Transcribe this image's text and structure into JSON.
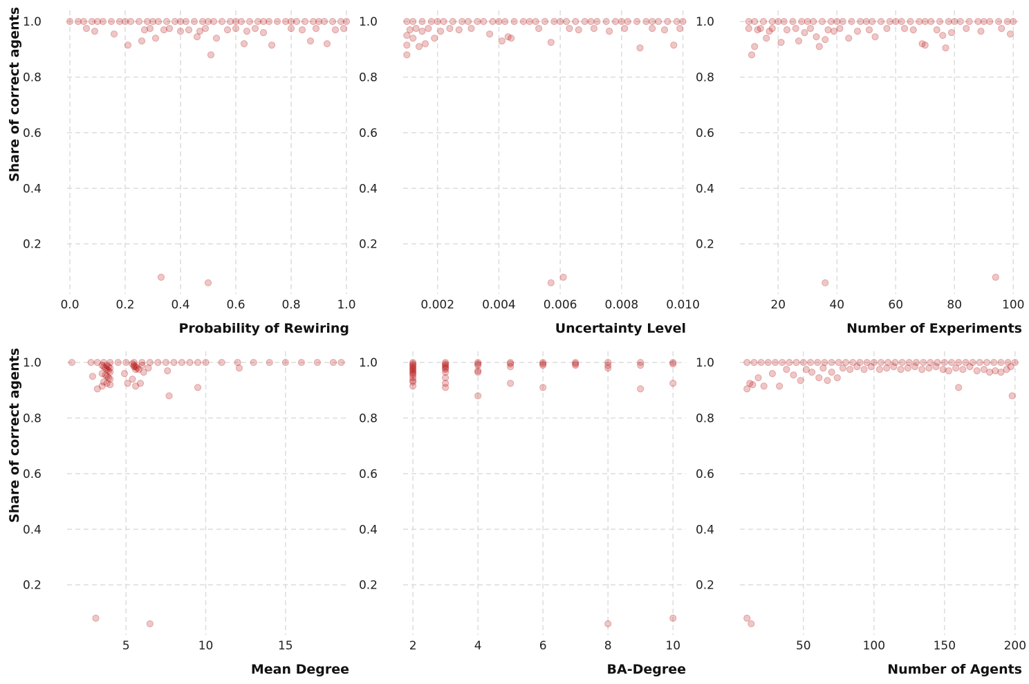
{
  "style": {
    "point_color": "#b30000",
    "grid_color": "#dcdcdc"
  },
  "chart_data": [
    {
      "type": "scatter",
      "xlabel": "Probability of Rewiring",
      "ylabel": "Share of correct agents",
      "xlim": [
        -0.01,
        1.01
      ],
      "ylim": [
        0.02,
        1.04
      ],
      "xticks": [
        0.0,
        0.2,
        0.4,
        0.6,
        0.8,
        1.0
      ],
      "xtick_labels": [
        "0.0",
        "0.2",
        "0.4",
        "0.6",
        "0.8",
        "1.0"
      ],
      "yticks": [
        0.2,
        0.4,
        0.6,
        0.8,
        1.0
      ],
      "ytick_labels": [
        "0.2",
        "0.4",
        "0.6",
        "0.8",
        "1.0"
      ],
      "grid": true,
      "points": {
        "x": [
          0.0,
          0.05,
          0.1,
          0.15,
          0.2,
          0.25,
          0.3,
          0.35,
          0.4,
          0.45,
          0.5,
          0.55,
          0.6,
          0.65,
          0.7,
          0.75,
          0.8,
          0.85,
          0.9,
          0.95,
          1.0,
          0.03,
          0.08,
          0.12,
          0.18,
          0.22,
          0.28,
          0.32,
          0.38,
          0.42,
          0.48,
          0.52,
          0.58,
          0.62,
          0.68,
          0.72,
          0.78,
          0.82,
          0.88,
          0.92,
          0.98,
          0.06,
          0.09,
          0.16,
          0.21,
          0.26,
          0.27,
          0.29,
          0.31,
          0.34,
          0.36,
          0.4,
          0.43,
          0.46,
          0.47,
          0.49,
          0.51,
          0.53,
          0.57,
          0.6,
          0.63,
          0.64,
          0.67,
          0.7,
          0.73,
          0.8,
          0.84,
          0.87,
          0.89,
          0.93,
          0.96,
          0.99,
          0.33,
          0.5
        ],
        "y": [
          1.0,
          1.0,
          1.0,
          1.0,
          1.0,
          1.0,
          1.0,
          1.0,
          1.0,
          1.0,
          1.0,
          1.0,
          1.0,
          1.0,
          1.0,
          1.0,
          1.0,
          1.0,
          1.0,
          1.0,
          1.0,
          1.0,
          1.0,
          1.0,
          1.0,
          1.0,
          1.0,
          1.0,
          1.0,
          1.0,
          1.0,
          1.0,
          1.0,
          1.0,
          1.0,
          1.0,
          1.0,
          1.0,
          1.0,
          1.0,
          1.0,
          0.975,
          0.965,
          0.955,
          0.915,
          0.93,
          0.97,
          0.975,
          0.94,
          0.97,
          0.975,
          0.965,
          0.97,
          0.945,
          0.965,
          0.975,
          0.88,
          0.94,
          0.97,
          0.975,
          0.92,
          0.965,
          0.975,
          0.96,
          0.915,
          0.975,
          0.97,
          0.93,
          0.975,
          0.92,
          0.97,
          0.975,
          0.08,
          0.06
        ]
      }
    },
    {
      "type": "scatter",
      "xlabel": "Uncertainty Level",
      "ylabel": "",
      "xlim": [
        0.00088,
        0.0101
      ],
      "ylim": [
        0.02,
        1.04
      ],
      "xticks": [
        0.002,
        0.004,
        0.006,
        0.008,
        0.01
      ],
      "xtick_labels": [
        "0.002",
        "0.004",
        "0.006",
        "0.008",
        "0.010"
      ],
      "yticks": [
        0.2,
        0.4,
        0.6,
        0.8,
        1.0
      ],
      "ytick_labels": [
        "0.2",
        "0.4",
        "0.6",
        "0.8",
        "1.0"
      ],
      "grid": true,
      "points": {
        "x": [
          0.001,
          0.0015,
          0.002,
          0.0025,
          0.003,
          0.0035,
          0.004,
          0.0045,
          0.005,
          0.0055,
          0.006,
          0.0065,
          0.007,
          0.0075,
          0.008,
          0.0085,
          0.009,
          0.0095,
          0.01,
          0.0012,
          0.0018,
          0.0022,
          0.0028,
          0.0033,
          0.0038,
          0.0042,
          0.0048,
          0.0052,
          0.0058,
          0.0062,
          0.0068,
          0.0072,
          0.0078,
          0.0082,
          0.0088,
          0.0092,
          0.0098,
          0.001,
          0.001,
          0.001,
          0.0011,
          0.0012,
          0.0013,
          0.0014,
          0.0015,
          0.0016,
          0.0017,
          0.0019,
          0.0021,
          0.0024,
          0.0027,
          0.0031,
          0.0037,
          0.0041,
          0.0043,
          0.0044,
          0.0053,
          0.0057,
          0.0063,
          0.0066,
          0.0071,
          0.0076,
          0.0081,
          0.0086,
          0.009,
          0.0094,
          0.0097,
          0.0099,
          0.0057,
          0.0061
        ],
        "y": [
          1.0,
          1.0,
          1.0,
          1.0,
          1.0,
          1.0,
          1.0,
          1.0,
          1.0,
          1.0,
          1.0,
          1.0,
          1.0,
          1.0,
          1.0,
          1.0,
          1.0,
          1.0,
          1.0,
          1.0,
          1.0,
          1.0,
          1.0,
          1.0,
          1.0,
          1.0,
          1.0,
          1.0,
          1.0,
          1.0,
          1.0,
          1.0,
          1.0,
          1.0,
          1.0,
          1.0,
          1.0,
          0.95,
          0.915,
          0.88,
          0.97,
          0.94,
          0.975,
          0.91,
          0.965,
          0.92,
          0.975,
          0.94,
          0.965,
          0.975,
          0.97,
          0.975,
          0.955,
          0.93,
          0.945,
          0.94,
          0.975,
          0.925,
          0.975,
          0.97,
          0.975,
          0.965,
          0.975,
          0.905,
          0.975,
          0.97,
          0.915,
          0.975,
          0.06,
          0.08
        ]
      }
    },
    {
      "type": "scatter",
      "xlabel": "Number of Experiments",
      "ylabel": "",
      "xlim": [
        7,
        103
      ],
      "ylim": [
        0.02,
        1.04
      ],
      "xticks": [
        20,
        40,
        60,
        80,
        100
      ],
      "xtick_labels": [
        "20",
        "40",
        "60",
        "80",
        "100"
      ],
      "yticks": [
        0.2,
        0.4,
        0.6,
        0.8,
        1.0
      ],
      "ytick_labels": [
        "0.2",
        "0.4",
        "0.6",
        "0.8",
        "1.0"
      ],
      "grid": true,
      "points": {
        "x": [
          10,
          15,
          20,
          25,
          30,
          35,
          40,
          45,
          50,
          55,
          60,
          65,
          70,
          75,
          80,
          85,
          90,
          95,
          100,
          12,
          18,
          22,
          28,
          32,
          38,
          42,
          48,
          52,
          58,
          62,
          68,
          72,
          78,
          82,
          88,
          92,
          98,
          10,
          11,
          12,
          13,
          14,
          16,
          17,
          18,
          21,
          23,
          26,
          27,
          29,
          31,
          33,
          34,
          36,
          37,
          39,
          41,
          44,
          47,
          51,
          53,
          57,
          63,
          66,
          69,
          70,
          74,
          76,
          77,
          79,
          84,
          89,
          96,
          99,
          36,
          94
        ],
        "y": [
          1.0,
          1.0,
          1.0,
          1.0,
          1.0,
          1.0,
          1.0,
          1.0,
          1.0,
          1.0,
          1.0,
          1.0,
          1.0,
          1.0,
          1.0,
          1.0,
          1.0,
          1.0,
          1.0,
          1.0,
          1.0,
          1.0,
          1.0,
          1.0,
          1.0,
          1.0,
          1.0,
          1.0,
          1.0,
          1.0,
          1.0,
          1.0,
          1.0,
          1.0,
          1.0,
          1.0,
          1.0,
          0.975,
          0.88,
          0.91,
          0.97,
          0.975,
          0.94,
          0.965,
          0.975,
          0.925,
          0.97,
          0.975,
          0.93,
          0.96,
          0.975,
          0.945,
          0.91,
          0.935,
          0.97,
          0.965,
          0.975,
          0.94,
          0.965,
          0.97,
          0.945,
          0.975,
          0.975,
          0.97,
          0.92,
          0.915,
          0.97,
          0.95,
          0.905,
          0.96,
          0.975,
          0.965,
          0.975,
          0.955,
          0.06,
          0.08
        ]
      }
    },
    {
      "type": "scatter",
      "xlabel": "Mean Degree",
      "ylabel": "Share of correct agents",
      "xlim": [
        1.3,
        19.0
      ],
      "ylim": [
        0.02,
        1.04
      ],
      "xticks": [
        5,
        10,
        15
      ],
      "xtick_labels": [
        "5",
        "10",
        "15"
      ],
      "yticks": [
        0.2,
        0.4,
        0.6,
        0.8,
        1.0
      ],
      "ytick_labels": [
        "0.2",
        "0.4",
        "0.6",
        "0.8",
        "1.0"
      ],
      "grid": true,
      "points": {
        "x": [
          1.6,
          2.8,
          3.2,
          3.6,
          4.0,
          4.5,
          5.0,
          5.5,
          6.0,
          6.5,
          7.0,
          7.5,
          8.0,
          8.5,
          9.0,
          9.5,
          10,
          11,
          12,
          13,
          14,
          15,
          16,
          17,
          18,
          18.5,
          3.5,
          3.6,
          3.7,
          3.8,
          3.9,
          4.0,
          3.5,
          3.7,
          3.8,
          3.9,
          4.0,
          3.6,
          3.8,
          3.9,
          4.0,
          5.5,
          5.6,
          5.7,
          5.8,
          6.0,
          5.4,
          5.5,
          5.6,
          2.9,
          3.2,
          3.5,
          3.8,
          4.0,
          4.9,
          5.1,
          5.4,
          5.6,
          5.9,
          6.1,
          6.4,
          7.6,
          7.7,
          9.5,
          12.1,
          3.1,
          6.5
        ],
        "y": [
          1.0,
          1.0,
          1.0,
          1.0,
          1.0,
          1.0,
          1.0,
          1.0,
          1.0,
          1.0,
          1.0,
          1.0,
          1.0,
          1.0,
          1.0,
          1.0,
          1.0,
          1.0,
          1.0,
          1.0,
          1.0,
          1.0,
          1.0,
          1.0,
          1.0,
          1.0,
          0.99,
          0.985,
          0.98,
          0.975,
          0.97,
          0.965,
          0.96,
          0.955,
          0.95,
          0.945,
          0.94,
          0.93,
          0.99,
          0.985,
          0.98,
          0.99,
          0.985,
          0.98,
          0.975,
          0.99,
          0.995,
          0.985,
          0.975,
          0.95,
          0.905,
          0.915,
          0.925,
          0.92,
          0.96,
          0.925,
          0.94,
          0.915,
          0.925,
          0.965,
          0.98,
          0.97,
          0.88,
          0.91,
          0.98,
          0.08,
          0.06
        ]
      }
    },
    {
      "type": "scatter",
      "xlabel": "BA-Degree",
      "ylabel": "",
      "xlim": [
        1.7,
        10.4
      ],
      "ylim": [
        0.02,
        1.04
      ],
      "xticks": [
        2,
        4,
        6,
        8,
        10
      ],
      "xtick_labels": [
        "2",
        "4",
        "6",
        "8",
        "10"
      ],
      "yticks": [
        0.2,
        0.4,
        0.6,
        0.8,
        1.0
      ],
      "ytick_labels": [
        "0.2",
        "0.4",
        "0.6",
        "0.8",
        "1.0"
      ],
      "grid": true,
      "points": {
        "x": [
          2,
          2,
          2,
          2,
          2,
          2,
          2,
          2,
          2,
          2,
          2,
          2,
          2,
          2,
          3,
          3,
          3,
          3,
          3,
          3,
          3,
          3,
          3,
          3,
          4,
          4,
          4,
          4,
          4,
          4,
          5,
          5,
          5,
          5,
          6,
          6,
          6,
          6,
          7,
          7,
          7,
          8,
          8,
          8,
          9,
          9,
          9,
          10,
          10,
          10,
          8,
          10
        ],
        "y": [
          1.0,
          0.995,
          0.99,
          0.985,
          0.98,
          0.975,
          0.97,
          0.965,
          0.96,
          0.955,
          0.945,
          0.935,
          0.93,
          0.915,
          1.0,
          0.995,
          0.99,
          0.985,
          0.98,
          0.975,
          0.965,
          0.945,
          0.925,
          0.91,
          1.0,
          0.995,
          0.99,
          0.97,
          0.965,
          0.88,
          1.0,
          0.995,
          0.985,
          0.925,
          1.0,
          0.995,
          0.99,
          0.91,
          1.0,
          0.995,
          0.99,
          1.0,
          0.99,
          0.98,
          1.0,
          0.99,
          0.905,
          1.0,
          0.995,
          0.925,
          0.06,
          0.08
        ]
      }
    },
    {
      "type": "scatter",
      "xlabel": "Number of Agents",
      "ylabel": "",
      "xlim": [
        5,
        205
      ],
      "ylim": [
        0.02,
        1.04
      ],
      "xticks": [
        50,
        100,
        150,
        200
      ],
      "xtick_labels": [
        "50",
        "100",
        "150",
        "200"
      ],
      "yticks": [
        0.2,
        0.4,
        0.6,
        0.8,
        1.0
      ],
      "ytick_labels": [
        "0.2",
        "0.4",
        "0.6",
        "0.8",
        "1.0"
      ],
      "grid": true,
      "points": {
        "x": [
          10,
          20,
          30,
          40,
          50,
          60,
          70,
          80,
          90,
          100,
          110,
          120,
          130,
          140,
          150,
          160,
          170,
          180,
          190,
          200,
          15,
          25,
          35,
          45,
          55,
          65,
          75,
          85,
          95,
          105,
          115,
          125,
          135,
          145,
          155,
          165,
          175,
          185,
          195,
          10,
          12,
          14,
          18,
          22,
          28,
          33,
          38,
          43,
          48,
          52,
          56,
          61,
          64,
          67,
          70,
          74,
          78,
          83,
          88,
          93,
          98,
          104,
          109,
          114,
          119,
          124,
          129,
          134,
          139,
          144,
          149,
          153,
          158,
          163,
          168,
          173,
          178,
          182,
          186,
          190,
          194,
          197,
          160,
          198,
          10,
          13
        ],
        "y": [
          1.0,
          1.0,
          1.0,
          1.0,
          1.0,
          1.0,
          1.0,
          1.0,
          1.0,
          1.0,
          1.0,
          1.0,
          1.0,
          1.0,
          1.0,
          1.0,
          1.0,
          1.0,
          1.0,
          1.0,
          1.0,
          1.0,
          1.0,
          1.0,
          1.0,
          1.0,
          1.0,
          1.0,
          1.0,
          1.0,
          1.0,
          1.0,
          1.0,
          1.0,
          1.0,
          1.0,
          1.0,
          1.0,
          1.0,
          0.905,
          0.925,
          0.92,
          0.945,
          0.915,
          0.96,
          0.915,
          0.975,
          0.955,
          0.935,
          0.975,
          0.965,
          0.945,
          0.98,
          0.935,
          0.965,
          0.945,
          0.98,
          0.975,
          0.985,
          0.975,
          0.985,
          0.975,
          0.98,
          0.985,
          0.975,
          0.98,
          0.985,
          0.975,
          0.98,
          0.985,
          0.975,
          0.97,
          0.98,
          0.975,
          0.985,
          0.97,
          0.975,
          0.965,
          0.97,
          0.965,
          0.975,
          0.985,
          0.91,
          0.88,
          0.08,
          0.06
        ]
      }
    }
  ]
}
